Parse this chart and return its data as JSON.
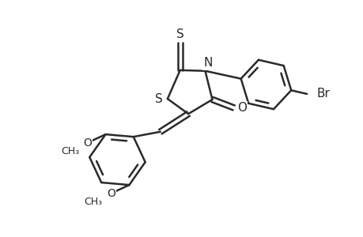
{
  "background_color": "#ffffff",
  "line_color": "#2a2a2a",
  "line_width": 1.8,
  "font_size": 10,
  "figsize": [
    4.6,
    3.0
  ],
  "dpi": 100,
  "xlim": [
    0,
    10
  ],
  "ylim": [
    0,
    6.5
  ]
}
